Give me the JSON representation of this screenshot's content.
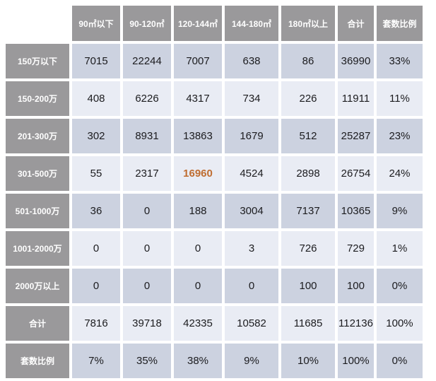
{
  "colors": {
    "header_bg": "#9a999b",
    "header_text": "#ffffff",
    "row_band_dark": "#ccd2e0",
    "row_band_light": "#e9ecf4",
    "cell_text": "#1c1c1f",
    "highlight_text": "#bf6d31",
    "background": "#ffffff"
  },
  "chart_data": {
    "type": "table",
    "columns": [
      "90㎡以下",
      "90-120㎡",
      "120-144㎡",
      "144-180㎡",
      "180㎡以上",
      "合计",
      "套数比例"
    ],
    "row_labels": [
      "150万以下",
      "150-200万",
      "201-300万",
      "301-500万",
      "501-1000万",
      "1001-2000万",
      "2000万以上",
      "合计",
      "套数比例"
    ],
    "rows": [
      [
        "7015",
        "22244",
        "7007",
        "638",
        "86",
        "36990",
        "33%"
      ],
      [
        "408",
        "6226",
        "4317",
        "734",
        "226",
        "11911",
        "11%"
      ],
      [
        "302",
        "8931",
        "13863",
        "1679",
        "512",
        "25287",
        "23%"
      ],
      [
        "55",
        "2317",
        "16960",
        "4524",
        "2898",
        "26754",
        "24%"
      ],
      [
        "36",
        "0",
        "188",
        "3004",
        "7137",
        "10365",
        "9%"
      ],
      [
        "0",
        "0",
        "0",
        "3",
        "726",
        "729",
        "1%"
      ],
      [
        "0",
        "0",
        "0",
        "0",
        "100",
        "100",
        "0%"
      ],
      [
        "7816",
        "39718",
        "42335",
        "10582",
        "11685",
        "112136",
        "100%"
      ],
      [
        "7%",
        "35%",
        "38%",
        "9%",
        "10%",
        "100%",
        "0%"
      ]
    ],
    "highlight_cell": {
      "row_label": "301-500万",
      "column": "120-144㎡",
      "value": "16960",
      "color": "#bf6d31"
    }
  }
}
